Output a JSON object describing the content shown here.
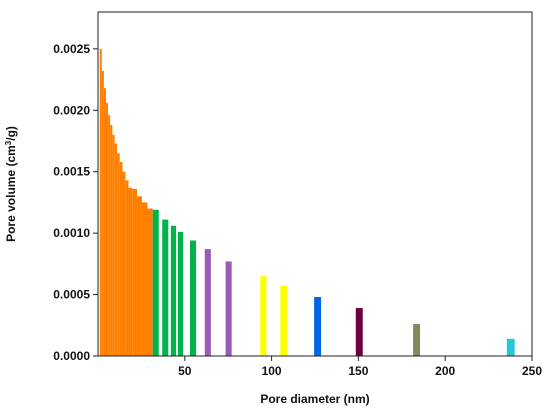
{
  "chart_data": {
    "type": "bar",
    "title": "",
    "xlabel": "Pore diameter (nm)",
    "ylabel_parts": {
      "prefix": "Pore volume (cm",
      "sup": "3",
      "suffix": "/g)"
    },
    "xlim": [
      0,
      250
    ],
    "ylim": [
      0,
      0.0028
    ],
    "x_ticks": [
      50,
      100,
      150,
      200,
      250
    ],
    "y_ticks": [
      0.0,
      0.0005,
      0.001,
      0.0015,
      0.002,
      0.0025
    ],
    "y_tick_labels": [
      "0.0000",
      "0.0005",
      "0.0010",
      "0.0015",
      "0.0020",
      "0.0025"
    ],
    "grid": false,
    "series": [
      {
        "color": "#ff8000",
        "bars": [
          {
            "x": 1.0,
            "x_end": 2.2,
            "value": 0.0025
          },
          {
            "x": 2.2,
            "x_end": 3.4,
            "value": 0.00232
          },
          {
            "x": 3.4,
            "x_end": 4.6,
            "value": 0.00218
          },
          {
            "x": 4.6,
            "x_end": 5.8,
            "value": 0.00206
          },
          {
            "x": 5.8,
            "x_end": 7.0,
            "value": 0.00196
          },
          {
            "x": 7.0,
            "x_end": 8.3,
            "value": 0.00188
          },
          {
            "x": 8.3,
            "x_end": 9.6,
            "value": 0.0018
          },
          {
            "x": 9.6,
            "x_end": 11.0,
            "value": 0.00173
          },
          {
            "x": 11.0,
            "x_end": 12.5,
            "value": 0.00165
          },
          {
            "x": 12.5,
            "x_end": 14.1,
            "value": 0.00158
          },
          {
            "x": 14.1,
            "x_end": 15.8,
            "value": 0.0015
          },
          {
            "x": 15.8,
            "x_end": 17.6,
            "value": 0.00143
          },
          {
            "x": 17.6,
            "x_end": 19.7,
            "value": 0.00137
          },
          {
            "x": 19.7,
            "x_end": 22.5,
            "value": 0.00136
          },
          {
            "x": 22.5,
            "x_end": 25.3,
            "value": 0.0013
          },
          {
            "x": 25.3,
            "x_end": 28.5,
            "value": 0.00125
          },
          {
            "x": 28.5,
            "x_end": 31.5,
            "value": 0.0012
          }
        ]
      },
      {
        "color": "#00b34a",
        "bars": [
          {
            "x": 31.5,
            "x_end": 35.0,
            "value": 0.00119
          },
          {
            "x": 37.0,
            "x_end": 40.5,
            "value": 0.00111
          },
          {
            "x": 42.0,
            "x_end": 45.0,
            "value": 0.00106
          },
          {
            "x": 46.0,
            "x_end": 49.0,
            "value": 0.00101
          },
          {
            "x": 53.0,
            "x_end": 56.5,
            "value": 0.00094
          }
        ]
      },
      {
        "color": "#9b59b6",
        "bars": [
          {
            "x": 61.5,
            "x_end": 65.0,
            "value": 0.00087
          },
          {
            "x": 73.5,
            "x_end": 77.0,
            "value": 0.00077
          }
        ]
      },
      {
        "color": "#ffff00",
        "bars": [
          {
            "x": 93.5,
            "x_end": 97.0,
            "value": 0.00065
          },
          {
            "x": 105.0,
            "x_end": 109.0,
            "value": 0.00057
          }
        ]
      },
      {
        "color": "#0066e6",
        "bars": [
          {
            "x": 124.5,
            "x_end": 128.5,
            "value": 0.00048
          }
        ]
      },
      {
        "color": "#6b003a",
        "bars": [
          {
            "x": 148.5,
            "x_end": 152.5,
            "value": 0.00039
          }
        ]
      },
      {
        "color": "#7f8c5a",
        "bars": [
          {
            "x": 181.5,
            "x_end": 185.5,
            "value": 0.00026
          }
        ]
      },
      {
        "color": "#26c6da",
        "bars": [
          {
            "x": 235.5,
            "x_end": 240.0,
            "value": 0.00014
          }
        ]
      }
    ]
  }
}
